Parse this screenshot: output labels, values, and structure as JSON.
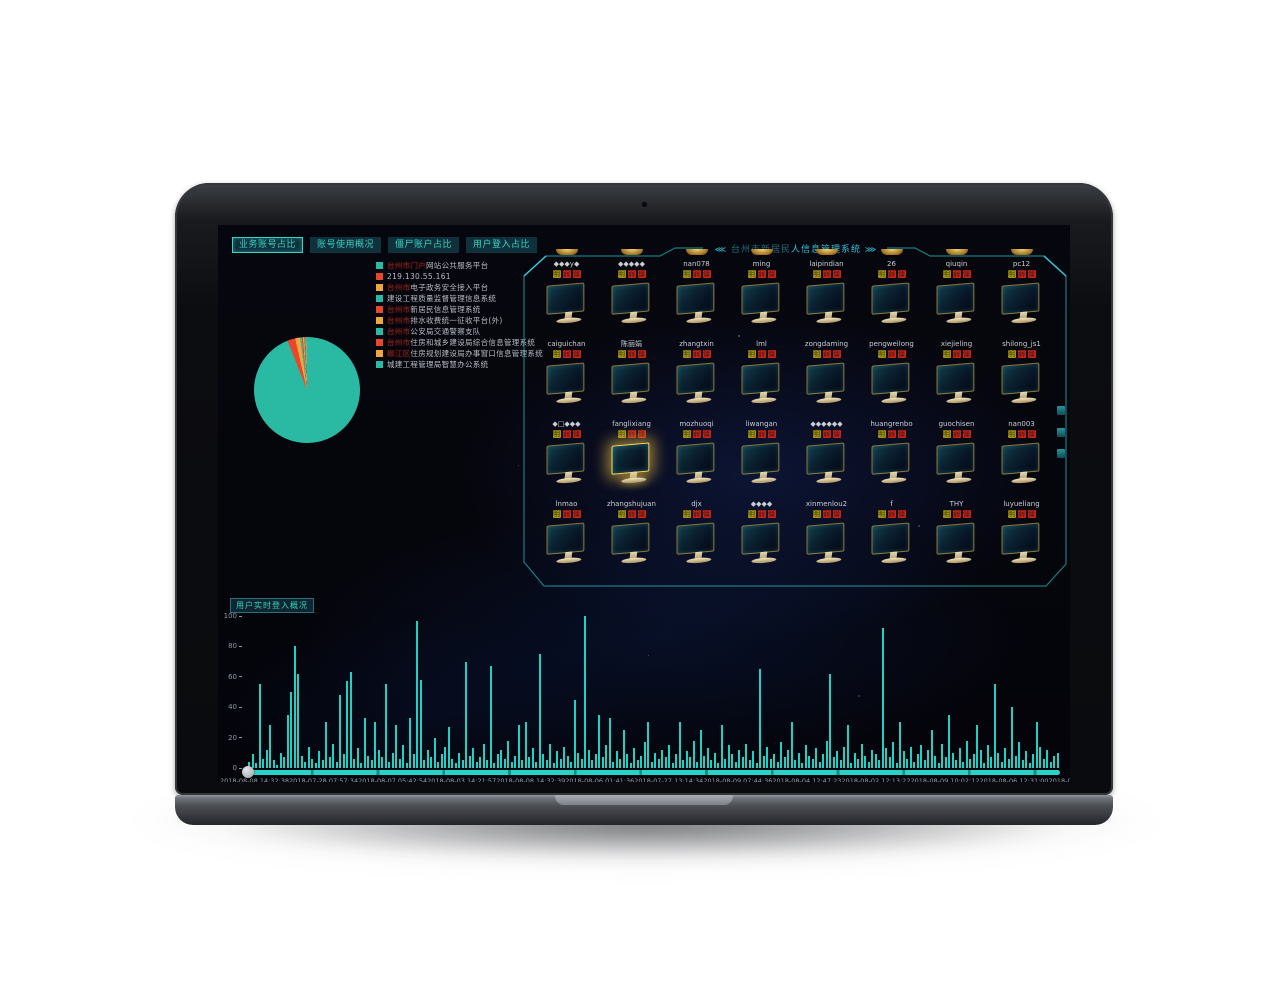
{
  "tabs": [
    {
      "label": "业务账号占比",
      "selected": true
    },
    {
      "label": "账号使用概况",
      "selected": false
    },
    {
      "label": "僵尸账户占比",
      "selected": false
    },
    {
      "label": "用户登入占比",
      "selected": false
    }
  ],
  "legend": {
    "items": [
      {
        "color": "#2ab9a3",
        "redacted": "台州市门户",
        "label": "网站公共服务平台"
      },
      {
        "color": "#e8472b",
        "redacted": "",
        "label": "219.130.55.161"
      },
      {
        "color": "#efa73e",
        "redacted": "台州市",
        "label": "电子政务安全接入平台"
      },
      {
        "color": "#2ab9a3",
        "redacted": "",
        "label": "建设工程质量监督管理信息系统"
      },
      {
        "color": "#e8472b",
        "redacted": "台州市",
        "label": "新居民信息管理系统"
      },
      {
        "color": "#efa73e",
        "redacted": "台州市",
        "label": "排水收费统一征收平台(外)"
      },
      {
        "color": "#2ab9a3",
        "redacted": "台州市",
        "label": "公安局交通警察支队"
      },
      {
        "color": "#e8472b",
        "redacted": "台州市",
        "label": "住房和城乡建设局综合信息管理系统"
      },
      {
        "color": "#efa73e",
        "redacted": "椒江区",
        "label": "住房规划建设局办事窗口信息管理系统"
      },
      {
        "color": "#2ab9a3",
        "redacted": "",
        "label": "城建工程管理局智慧办公系统"
      }
    ]
  },
  "monitor_panel": {
    "arrow_left": "⋘",
    "arrow_right": "⋙",
    "title_redacted": "台州市新居民",
    "title_rest": "人信息管理系统",
    "selected_index": 17,
    "tags": [
      {
        "text": "明",
        "color": "#a39312"
      },
      {
        "text": "弱",
        "color": "#c5271a"
      },
      {
        "text": "僵",
        "color": "#c5271a"
      }
    ],
    "users": [
      "◆◆◆y◆",
      "◆◆◆◆◆",
      "nan078",
      "ming",
      "laipindian",
      "26",
      "qiuqin",
      "pc12",
      "caiguichan",
      "陈丽娟",
      "zhangtxin",
      "lml",
      "zongdaming",
      "pengweilong",
      "xiejieling",
      "shilong_js1",
      "◆□◆◆◆",
      "fanglixiang",
      "mozhuoqi",
      "liwangan",
      "◆◆◆◆◆◆",
      "huangrenbo",
      "guochisen",
      "nan003",
      "lnmao",
      "zhangshujuan",
      "djx",
      "◆◆◆◆",
      "xinmenlou2",
      "f",
      "THY",
      "luyueliang"
    ]
  },
  "chart_data": [
    {
      "type": "pie",
      "title": "业务账号占比",
      "labels": [
        "台州市门户网站公共服务平台",
        "219.130.55.161",
        "台州市电子政务安全接入平台",
        "建设工程质量监督管理信息系统",
        "台州市新居民信息管理系统",
        "台州市排水收费统一征收平台(外)",
        "台州市公安局交通警察支队",
        "台州市住房和城乡建设局综合信息管理系统",
        "椒江区住房规划建设局办事窗口信息管理系统",
        "城建工程管理局智慧办公系统"
      ],
      "values": [
        94.0,
        2.4,
        1.5,
        0.5,
        0.35,
        0.3,
        0.25,
        0.25,
        0.2,
        0.25
      ],
      "colors": [
        "#2ab9a3",
        "#e8472b",
        "#efa73e",
        "#2ab9a3",
        "#e8472b",
        "#efa73e",
        "#2ab9a3",
        "#e8472b",
        "#efa73e",
        "#2ab9a3"
      ],
      "legend_position": "right"
    },
    {
      "type": "bar",
      "title": "用户实时登入概况",
      "ylim": [
        0,
        100
      ],
      "y_ticks": [
        "100",
        "80",
        "60",
        "40",
        "20",
        "0"
      ],
      "x_tick_labels": [
        "2018-08-08 14:32:38",
        "2018-07-28 07:57:34",
        "2018-08-07 05:42:54",
        "2018-08-03 14:21:57",
        "2018-08-08 14:32:39",
        "2018-08-06 01:41:36",
        "2018-07-27 13:14:34",
        "2018-08-09 07:44:36",
        "2018-08-04 12:47:23",
        "2018-08-02 12:13:22",
        "2018-08-09 10:02:12",
        "2018-08-06 12:31:00",
        "2018-08-10 07:01:26"
      ],
      "color": "#1dd2c5",
      "values": [
        4,
        9,
        3,
        55,
        6,
        12,
        28,
        5,
        2,
        10,
        7,
        35,
        50,
        80,
        62,
        8,
        4,
        14,
        6,
        3,
        11,
        5,
        30,
        7,
        16,
        4,
        48,
        9,
        57,
        63,
        6,
        13,
        3,
        33,
        8,
        5,
        30,
        12,
        7,
        55,
        4,
        10,
        28,
        6,
        15,
        3,
        33,
        9,
        97,
        58,
        5,
        12,
        7,
        20,
        4,
        9,
        14,
        27,
        6,
        3,
        10,
        5,
        70,
        8,
        13,
        4,
        7,
        16,
        5,
        67,
        3,
        9,
        12,
        6,
        18,
        4,
        8,
        28,
        5,
        30,
        7,
        13,
        4,
        75,
        9,
        5,
        16,
        3,
        11,
        6,
        14,
        8,
        4,
        45,
        10,
        6,
        100,
        12,
        5,
        9,
        35,
        7,
        15,
        33,
        4,
        11,
        6,
        25,
        9,
        3,
        13,
        5,
        8,
        17,
        30,
        4,
        10,
        6,
        12,
        7,
        15,
        3,
        9,
        30,
        5,
        11,
        7,
        18,
        4,
        25,
        8,
        13,
        5,
        10,
        3,
        28,
        6,
        15,
        9,
        4,
        12,
        7,
        16,
        5,
        11,
        3,
        65,
        8,
        14,
        6,
        9,
        4,
        17,
        7,
        12,
        30,
        5,
        10,
        3,
        15,
        8,
        6,
        13,
        4,
        9,
        18,
        62,
        7,
        11,
        5,
        14,
        28,
        3,
        10,
        6,
        16,
        8,
        4,
        12,
        9,
        5,
        92,
        13,
        7,
        17,
        3,
        30,
        11,
        6,
        14,
        4,
        9,
        15,
        5,
        12,
        25,
        8,
        3,
        16,
        7,
        35,
        10,
        5,
        13,
        4,
        18,
        6,
        9,
        28,
        12,
        3,
        15,
        7,
        55,
        10,
        4,
        13,
        6,
        40,
        8,
        17,
        5,
        11,
        3,
        9,
        30,
        14,
        6,
        12,
        4,
        8,
        10
      ]
    }
  ]
}
